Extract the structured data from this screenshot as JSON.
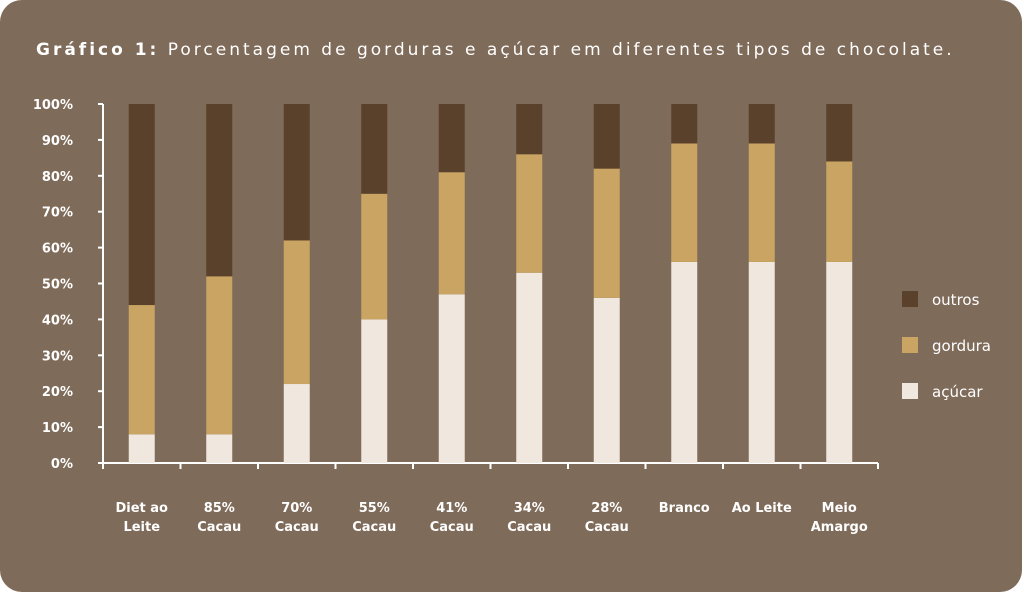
{
  "chart_data": {
    "type": "bar",
    "stacked": true,
    "title_lead": "Gráfico 1:",
    "title_rest": " Porcentagem de gorduras e açúcar em diferentes tipos de chocolate.",
    "xlabel": "",
    "ylabel": "",
    "ylim": [
      0,
      100
    ],
    "yticks": [
      "0%",
      "10%",
      "20%",
      "30%",
      "40%",
      "50%",
      "60%",
      "70%",
      "80%",
      "90%",
      "100%"
    ],
    "categories": [
      [
        "Diet ao",
        "Leite"
      ],
      [
        "85%",
        "Cacau"
      ],
      [
        "70%",
        "Cacau"
      ],
      [
        "55%",
        "Cacau"
      ],
      [
        "41%",
        "Cacau"
      ],
      [
        "34%",
        "Cacau"
      ],
      [
        "28%",
        "Cacau"
      ],
      [
        "Branco"
      ],
      [
        "Ao Leite"
      ],
      [
        "Meio",
        "Amargo"
      ]
    ],
    "series": [
      {
        "name": "açúcar",
        "color": "#f0e8df",
        "values": [
          8,
          8,
          22,
          40,
          47,
          53,
          46,
          56,
          56,
          56
        ]
      },
      {
        "name": "gordura",
        "color": "#c9a462",
        "values": [
          36,
          44,
          40,
          35,
          34,
          33,
          36,
          33,
          33,
          28
        ]
      },
      {
        "name": "outros",
        "color": "#5a412b",
        "values": [
          56,
          48,
          38,
          25,
          19,
          14,
          18,
          11,
          11,
          16
        ]
      }
    ],
    "legend": {
      "placement": "right",
      "order": [
        "outros",
        "gordura",
        "açúcar"
      ]
    },
    "grid": false
  }
}
